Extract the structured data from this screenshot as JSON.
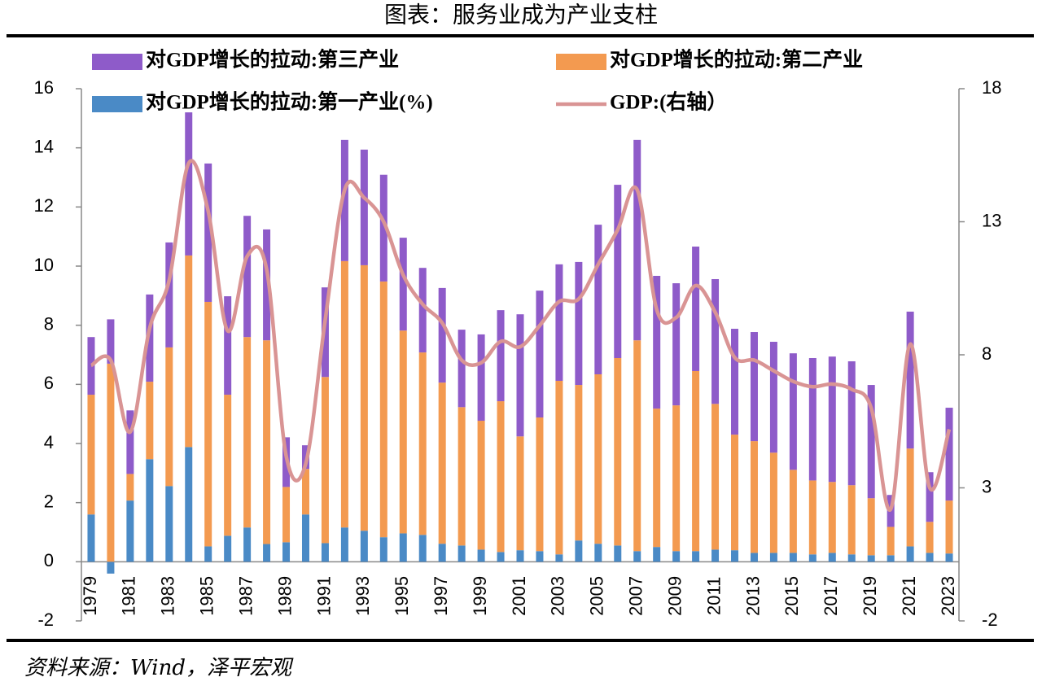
{
  "chart_data": {
    "type": "stacked_bar_line",
    "title": "图表：服务业成为产业支柱",
    "source": "资料来源：Wind，泽平宏观",
    "categories": [
      "1979",
      null,
      "1981",
      null,
      "1983",
      null,
      "1985",
      null,
      "1987",
      null,
      "1989",
      null,
      "1991",
      null,
      "1993",
      null,
      "1995",
      null,
      "1997",
      null,
      "1999",
      null,
      "2001",
      null,
      "2003",
      null,
      "2005",
      null,
      "2007",
      null,
      "2009",
      null,
      "2011",
      null,
      "2013",
      null,
      "2015",
      null,
      "2017",
      null,
      "2019",
      null,
      "2021",
      null,
      "2023"
    ],
    "series": [
      {
        "name": "对GDP增长的拉动:第一产业(%)",
        "color": "#4a8ac6",
        "values": [
          1.6,
          -0.4,
          2.07,
          3.47,
          2.56,
          3.88,
          0.52,
          0.88,
          1.16,
          0.6,
          0.66,
          1.6,
          0.63,
          1.16,
          1.05,
          0.83,
          0.96,
          0.91,
          0.61,
          0.55,
          0.41,
          0.33,
          0.39,
          0.36,
          0.25,
          0.72,
          0.61,
          0.55,
          0.36,
          0.5,
          0.36,
          0.36,
          0.41,
          0.39,
          0.3,
          0.3,
          0.3,
          0.25,
          0.3,
          0.25,
          0.22,
          0.22,
          0.52,
          0.3,
          0.28
        ]
      },
      {
        "name": "对GDP增长的拉动:第二产业",
        "color": "#f39a50",
        "values": [
          4.05,
          6.7,
          0.9,
          2.62,
          4.69,
          6.48,
          8.27,
          4.77,
          6.44,
          6.89,
          1.87,
          1.54,
          5.62,
          9.01,
          8.98,
          8.65,
          6.86,
          6.17,
          5.45,
          4.68,
          4.36,
          5.1,
          3.85,
          4.52,
          5.87,
          5.26,
          5.73,
          6.34,
          7.13,
          4.68,
          4.93,
          6.09,
          4.93,
          3.91,
          3.78,
          3.39,
          2.81,
          2.5,
          2.4,
          2.34,
          1.93,
          0.96,
          3.31,
          1.05,
          1.79
        ]
      },
      {
        "name": "对GDP增长的拉动:第三产业",
        "color": "#8e5bc9",
        "values": [
          1.95,
          1.5,
          2.15,
          2.95,
          3.55,
          4.84,
          4.68,
          3.33,
          4.1,
          3.75,
          1.68,
          0.8,
          3.03,
          4.1,
          3.91,
          3.61,
          3.14,
          2.86,
          3.2,
          2.62,
          2.92,
          3.08,
          4.13,
          4.29,
          3.94,
          4.16,
          5.06,
          5.86,
          6.78,
          4.49,
          4.13,
          4.21,
          4.22,
          3.58,
          3.69,
          3.75,
          3.94,
          4.14,
          4.24,
          4.19,
          3.83,
          1.08,
          4.63,
          1.68,
          3.14
        ]
      },
      {
        "name": "GDP:(右轴）",
        "color": "#d99494",
        "axis": "y2",
        "values": [
          7.6,
          7.8,
          5.1,
          9.0,
          10.8,
          15.2,
          13.4,
          8.9,
          11.7,
          11.2,
          4.2,
          3.9,
          9.3,
          14.2,
          13.9,
          13.0,
          11.0,
          9.9,
          9.2,
          7.8,
          7.7,
          8.5,
          8.3,
          9.1,
          10.0,
          10.1,
          11.4,
          12.7,
          14.2,
          9.7,
          9.4,
          10.6,
          9.6,
          7.9,
          7.8,
          7.4,
          7.0,
          6.8,
          6.9,
          6.7,
          6.0,
          2.2,
          8.4,
          3.0,
          5.2
        ]
      }
    ],
    "ylim": [
      -2,
      16
    ],
    "yticks": [
      -2,
      0,
      2,
      4,
      6,
      8,
      10,
      12,
      14,
      16
    ],
    "y2lim": [
      -2,
      18
    ],
    "y2ticks": [
      -2,
      3,
      8,
      13,
      18
    ]
  }
}
